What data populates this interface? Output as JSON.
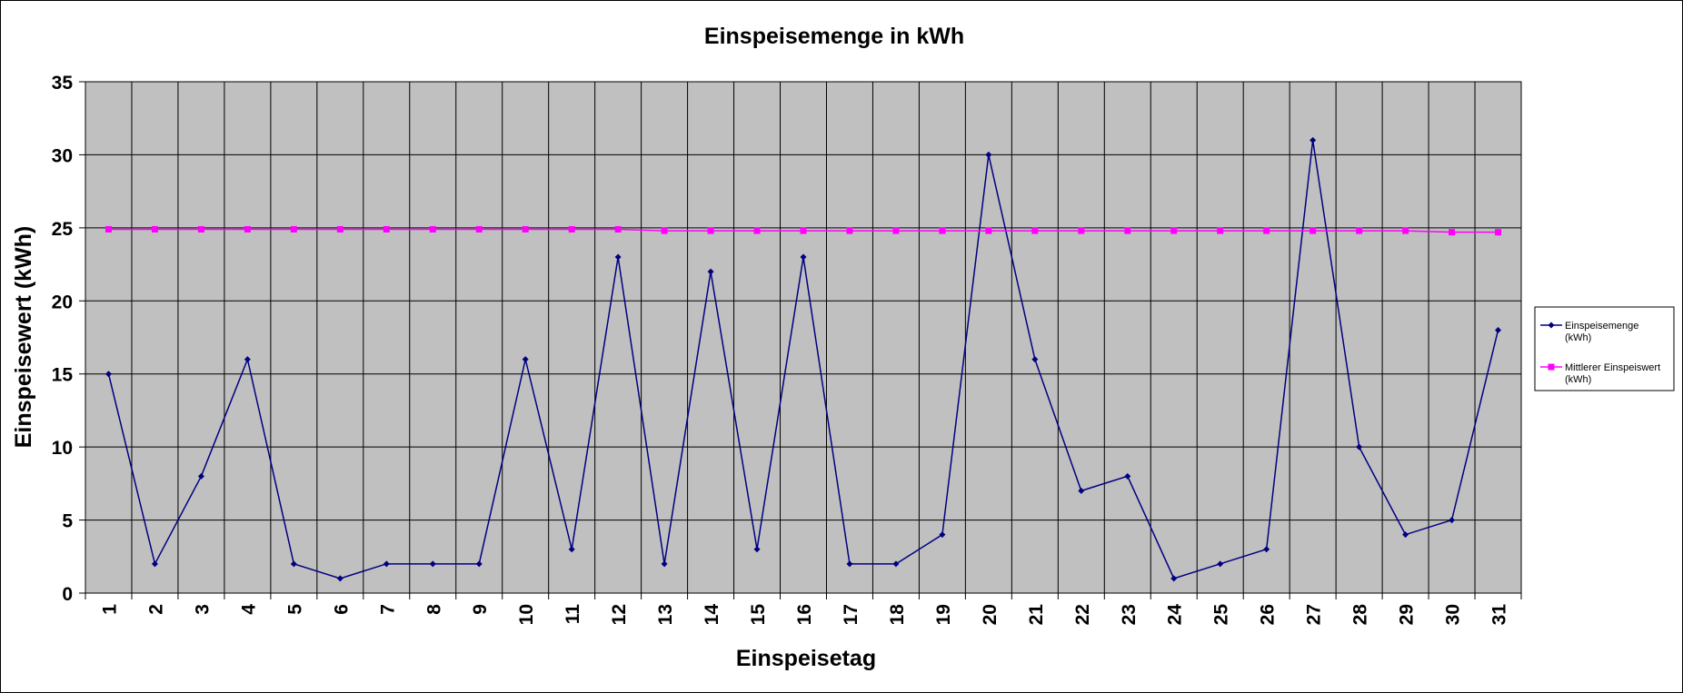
{
  "chart_data": {
    "type": "line",
    "title": "Einspeisemenge in kWh",
    "xlabel": "Einspeisetag",
    "ylabel": "Einspeisewert  (kWh)",
    "categories": [
      "1",
      "2",
      "3",
      "4",
      "5",
      "6",
      "7",
      "8",
      "9",
      "10",
      "11",
      "12",
      "13",
      "14",
      "15",
      "16",
      "17",
      "18",
      "19",
      "20",
      "21",
      "22",
      "23",
      "24",
      "25",
      "26",
      "27",
      "28",
      "29",
      "30",
      "31"
    ],
    "ylim": [
      0,
      35
    ],
    "yticks": [
      "0",
      "5",
      "10",
      "15",
      "20",
      "25",
      "30",
      "35"
    ],
    "grid": true,
    "legend_position": "right",
    "series": [
      {
        "name_lines": [
          "Einspeisemenge",
          "(kWh)"
        ],
        "color": "#000080",
        "marker": "diamond",
        "values": [
          15,
          2,
          8,
          16,
          2,
          1,
          2,
          2,
          2,
          16,
          3,
          23,
          2,
          22,
          3,
          23,
          2,
          2,
          4,
          30,
          16,
          7,
          8,
          1,
          2,
          3,
          31,
          10,
          4,
          5,
          18
        ]
      },
      {
        "name_lines": [
          "Mittlerer Einspeiswert",
          "(kWh)"
        ],
        "color": "#FF00FF",
        "marker": "square",
        "values": [
          24.9,
          24.9,
          24.9,
          24.9,
          24.9,
          24.9,
          24.9,
          24.9,
          24.9,
          24.9,
          24.9,
          24.9,
          24.8,
          24.8,
          24.8,
          24.8,
          24.8,
          24.8,
          24.8,
          24.8,
          24.8,
          24.8,
          24.8,
          24.8,
          24.8,
          24.8,
          24.8,
          24.8,
          24.8,
          24.7,
          24.7
        ]
      }
    ],
    "colors": {
      "plot_background": "#C0C0C0",
      "grid": "#000000"
    }
  }
}
